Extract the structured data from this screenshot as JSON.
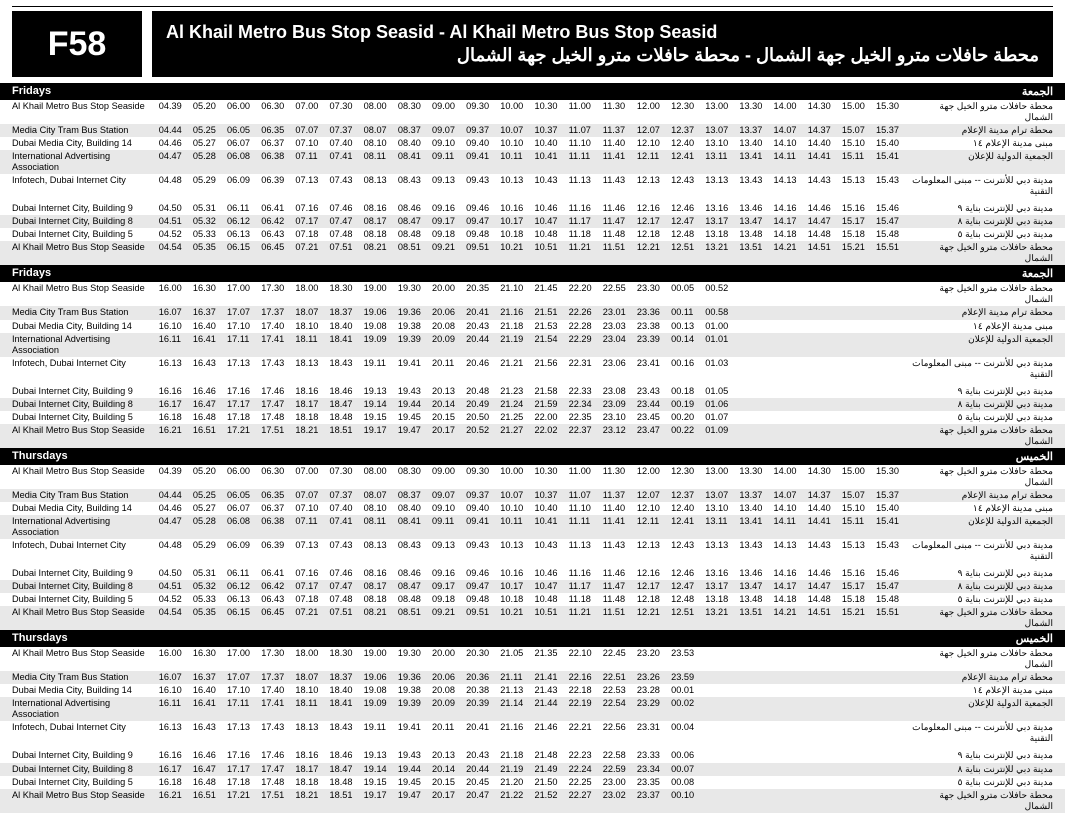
{
  "route_code": "F58",
  "title_en": "Al Khail Metro Bus Stop Seasid - Al Khail Metro Bus Stop Seasid",
  "title_ar": "محطة حافلات مترو الخيل جهة الشمال - محطة حافلات مترو الخيل جهة الشمال",
  "stops_en": [
    "Al Khail Metro Bus Stop Seaside",
    "Media City Tram Bus Station",
    "Dubai Media City, Building 14",
    "International Advertising Association",
    "Infotech, Dubai Internet City",
    "Dubai Internet City, Building 9",
    "Dubai Internet City, Building 8",
    "Dubai Internet City, Building 5",
    "Al Khail Metro Bus Stop Seaside"
  ],
  "stops_ar": [
    "محطة حافلات مترو الخيل جهة الشمال",
    "محطة ترام مدينة الإعلام",
    "مبنى مدينة الإعلام ١٤",
    "الجمعية الدولية للإعلان",
    "مدينة دبي للأنترنت -- مبنى المعلومات التقنية",
    "مدينة دبي للإنترنت بناية ٩",
    "مدينة دبي للإنترنت بناية ٨",
    "مدينة دبي للإنترنت بناية ٥",
    "محطة حافلات مترو الخيل جهة الشمال"
  ],
  "shade_pattern": [
    false,
    true,
    false,
    true,
    false,
    false,
    true,
    false,
    true
  ],
  "gap_before": [
    false,
    false,
    false,
    false,
    false,
    true,
    false,
    false,
    false
  ],
  "sections": [
    {
      "day_en": "Fridays",
      "day_ar": "الجمعة",
      "cols": 20,
      "rows": [
        [
          "04.39",
          "05.20",
          "06.00",
          "06.30",
          "07.00",
          "07.30",
          "08.00",
          "08.30",
          "09.00",
          "09.30",
          "10.00",
          "10.30",
          "11.00",
          "11.30",
          "12.00",
          "12.30",
          "13.00",
          "13.30",
          "14.00",
          "14.30",
          "15.00",
          "15.30"
        ],
        [
          "04.44",
          "05.25",
          "06.05",
          "06.35",
          "07.07",
          "07.37",
          "08.07",
          "08.37",
          "09.07",
          "09.37",
          "10.07",
          "10.37",
          "11.07",
          "11.37",
          "12.07",
          "12.37",
          "13.07",
          "13.37",
          "14.07",
          "14.37",
          "15.07",
          "15.37"
        ],
        [
          "04.46",
          "05.27",
          "06.07",
          "06.37",
          "07.10",
          "07.40",
          "08.10",
          "08.40",
          "09.10",
          "09.40",
          "10.10",
          "10.40",
          "11.10",
          "11.40",
          "12.10",
          "12.40",
          "13.10",
          "13.40",
          "14.10",
          "14.40",
          "15.10",
          "15.40"
        ],
        [
          "04.47",
          "05.28",
          "06.08",
          "06.38",
          "07.11",
          "07.41",
          "08.11",
          "08.41",
          "09.11",
          "09.41",
          "10.11",
          "10.41",
          "11.11",
          "11.41",
          "12.11",
          "12.41",
          "13.11",
          "13.41",
          "14.11",
          "14.41",
          "15.11",
          "15.41"
        ],
        [
          "04.48",
          "05.29",
          "06.09",
          "06.39",
          "07.13",
          "07.43",
          "08.13",
          "08.43",
          "09.13",
          "09.43",
          "10.13",
          "10.43",
          "11.13",
          "11.43",
          "12.13",
          "12.43",
          "13.13",
          "13.43",
          "14.13",
          "14.43",
          "15.13",
          "15.43"
        ],
        [
          "04.50",
          "05.31",
          "06.11",
          "06.41",
          "07.16",
          "07.46",
          "08.16",
          "08.46",
          "09.16",
          "09.46",
          "10.16",
          "10.46",
          "11.16",
          "11.46",
          "12.16",
          "12.46",
          "13.16",
          "13.46",
          "14.16",
          "14.46",
          "15.16",
          "15.46"
        ],
        [
          "04.51",
          "05.32",
          "06.12",
          "06.42",
          "07.17",
          "07.47",
          "08.17",
          "08.47",
          "09.17",
          "09.47",
          "10.17",
          "10.47",
          "11.17",
          "11.47",
          "12.17",
          "12.47",
          "13.17",
          "13.47",
          "14.17",
          "14.47",
          "15.17",
          "15.47"
        ],
        [
          "04.52",
          "05.33",
          "06.13",
          "06.43",
          "07.18",
          "07.48",
          "08.18",
          "08.48",
          "09.18",
          "09.48",
          "10.18",
          "10.48",
          "11.18",
          "11.48",
          "12.18",
          "12.48",
          "13.18",
          "13.48",
          "14.18",
          "14.48",
          "15.18",
          "15.48"
        ],
        [
          "04.54",
          "05.35",
          "06.15",
          "06.45",
          "07.21",
          "07.51",
          "08.21",
          "08.51",
          "09.21",
          "09.51",
          "10.21",
          "10.51",
          "11.21",
          "11.51",
          "12.21",
          "12.51",
          "13.21",
          "13.51",
          "14.21",
          "14.51",
          "15.21",
          "15.51"
        ]
      ]
    },
    {
      "day_en": "Fridays",
      "day_ar": "الجمعة",
      "cols": 15,
      "rows": [
        [
          "16.00",
          "16.30",
          "17.00",
          "17.30",
          "18.00",
          "18.30",
          "19.00",
          "19.30",
          "20.00",
          "20.35",
          "21.10",
          "21.45",
          "22.20",
          "22.55",
          "23.30",
          "00.05",
          "00.52"
        ],
        [
          "16.07",
          "16.37",
          "17.07",
          "17.37",
          "18.07",
          "18.37",
          "19.06",
          "19.36",
          "20.06",
          "20.41",
          "21.16",
          "21.51",
          "22.26",
          "23.01",
          "23.36",
          "00.11",
          "00.58"
        ],
        [
          "16.10",
          "16.40",
          "17.10",
          "17.40",
          "18.10",
          "18.40",
          "19.08",
          "19.38",
          "20.08",
          "20.43",
          "21.18",
          "21.53",
          "22.28",
          "23.03",
          "23.38",
          "00.13",
          "01.00"
        ],
        [
          "16.11",
          "16.41",
          "17.11",
          "17.41",
          "18.11",
          "18.41",
          "19.09",
          "19.39",
          "20.09",
          "20.44",
          "21.19",
          "21.54",
          "22.29",
          "23.04",
          "23.39",
          "00.14",
          "01.01"
        ],
        [
          "16.13",
          "16.43",
          "17.13",
          "17.43",
          "18.13",
          "18.43",
          "19.11",
          "19.41",
          "20.11",
          "20.46",
          "21.21",
          "21.56",
          "22.31",
          "23.06",
          "23.41",
          "00.16",
          "01.03"
        ],
        [
          "16.16",
          "16.46",
          "17.16",
          "17.46",
          "18.16",
          "18.46",
          "19.13",
          "19.43",
          "20.13",
          "20.48",
          "21.23",
          "21.58",
          "22.33",
          "23.08",
          "23.43",
          "00.18",
          "01.05"
        ],
        [
          "16.17",
          "16.47",
          "17.17",
          "17.47",
          "18.17",
          "18.47",
          "19.14",
          "19.44",
          "20.14",
          "20.49",
          "21.24",
          "21.59",
          "22.34",
          "23.09",
          "23.44",
          "00.19",
          "01.06"
        ],
        [
          "16.18",
          "16.48",
          "17.18",
          "17.48",
          "18.18",
          "18.48",
          "19.15",
          "19.45",
          "20.15",
          "20.50",
          "21.25",
          "22.00",
          "22.35",
          "23.10",
          "23.45",
          "00.20",
          "01.07"
        ],
        [
          "16.21",
          "16.51",
          "17.21",
          "17.51",
          "18.21",
          "18.51",
          "19.17",
          "19.47",
          "20.17",
          "20.52",
          "21.27",
          "22.02",
          "22.37",
          "23.12",
          "23.47",
          "00.22",
          "01.09"
        ]
      ]
    },
    {
      "day_en": "Thursdays",
      "day_ar": "الخميس",
      "cols": 20,
      "rows": [
        [
          "04.39",
          "05.20",
          "06.00",
          "06.30",
          "07.00",
          "07.30",
          "08.00",
          "08.30",
          "09.00",
          "09.30",
          "10.00",
          "10.30",
          "11.00",
          "11.30",
          "12.00",
          "12.30",
          "13.00",
          "13.30",
          "14.00",
          "14.30",
          "15.00",
          "15.30"
        ],
        [
          "04.44",
          "05.25",
          "06.05",
          "06.35",
          "07.07",
          "07.37",
          "08.07",
          "08.37",
          "09.07",
          "09.37",
          "10.07",
          "10.37",
          "11.07",
          "11.37",
          "12.07",
          "12.37",
          "13.07",
          "13.37",
          "14.07",
          "14.37",
          "15.07",
          "15.37"
        ],
        [
          "04.46",
          "05.27",
          "06.07",
          "06.37",
          "07.10",
          "07.40",
          "08.10",
          "08.40",
          "09.10",
          "09.40",
          "10.10",
          "10.40",
          "11.10",
          "11.40",
          "12.10",
          "12.40",
          "13.10",
          "13.40",
          "14.10",
          "14.40",
          "15.10",
          "15.40"
        ],
        [
          "04.47",
          "05.28",
          "06.08",
          "06.38",
          "07.11",
          "07.41",
          "08.11",
          "08.41",
          "09.11",
          "09.41",
          "10.11",
          "10.41",
          "11.11",
          "11.41",
          "12.11",
          "12.41",
          "13.11",
          "13.41",
          "14.11",
          "14.41",
          "15.11",
          "15.41"
        ],
        [
          "04.48",
          "05.29",
          "06.09",
          "06.39",
          "07.13",
          "07.43",
          "08.13",
          "08.43",
          "09.13",
          "09.43",
          "10.13",
          "10.43",
          "11.13",
          "11.43",
          "12.13",
          "12.43",
          "13.13",
          "13.43",
          "14.13",
          "14.43",
          "15.13",
          "15.43"
        ],
        [
          "04.50",
          "05.31",
          "06.11",
          "06.41",
          "07.16",
          "07.46",
          "08.16",
          "08.46",
          "09.16",
          "09.46",
          "10.16",
          "10.46",
          "11.16",
          "11.46",
          "12.16",
          "12.46",
          "13.16",
          "13.46",
          "14.16",
          "14.46",
          "15.16",
          "15.46"
        ],
        [
          "04.51",
          "05.32",
          "06.12",
          "06.42",
          "07.17",
          "07.47",
          "08.17",
          "08.47",
          "09.17",
          "09.47",
          "10.17",
          "10.47",
          "11.17",
          "11.47",
          "12.17",
          "12.47",
          "13.17",
          "13.47",
          "14.17",
          "14.47",
          "15.17",
          "15.47"
        ],
        [
          "04.52",
          "05.33",
          "06.13",
          "06.43",
          "07.18",
          "07.48",
          "08.18",
          "08.48",
          "09.18",
          "09.48",
          "10.18",
          "10.48",
          "11.18",
          "11.48",
          "12.18",
          "12.48",
          "13.18",
          "13.48",
          "14.18",
          "14.48",
          "15.18",
          "15.48"
        ],
        [
          "04.54",
          "05.35",
          "06.15",
          "06.45",
          "07.21",
          "07.51",
          "08.21",
          "08.51",
          "09.21",
          "09.51",
          "10.21",
          "10.51",
          "11.21",
          "11.51",
          "12.21",
          "12.51",
          "13.21",
          "13.51",
          "14.21",
          "14.51",
          "15.21",
          "15.51"
        ]
      ]
    },
    {
      "day_en": "Thursdays",
      "day_ar": "الخميس",
      "cols": 14,
      "rows": [
        [
          "16.00",
          "16.30",
          "17.00",
          "17.30",
          "18.00",
          "18.30",
          "19.00",
          "19.30",
          "20.00",
          "20.30",
          "21.05",
          "21.35",
          "22.10",
          "22.45",
          "23.20",
          "23.53"
        ],
        [
          "16.07",
          "16.37",
          "17.07",
          "17.37",
          "18.07",
          "18.37",
          "19.06",
          "19.36",
          "20.06",
          "20.36",
          "21.11",
          "21.41",
          "22.16",
          "22.51",
          "23.26",
          "23.59"
        ],
        [
          "16.10",
          "16.40",
          "17.10",
          "17.40",
          "18.10",
          "18.40",
          "19.08",
          "19.38",
          "20.08",
          "20.38",
          "21.13",
          "21.43",
          "22.18",
          "22.53",
          "23.28",
          "00.01"
        ],
        [
          "16.11",
          "16.41",
          "17.11",
          "17.41",
          "18.11",
          "18.41",
          "19.09",
          "19.39",
          "20.09",
          "20.39",
          "21.14",
          "21.44",
          "22.19",
          "22.54",
          "23.29",
          "00.02"
        ],
        [
          "16.13",
          "16.43",
          "17.13",
          "17.43",
          "18.13",
          "18.43",
          "19.11",
          "19.41",
          "20.11",
          "20.41",
          "21.16",
          "21.46",
          "22.21",
          "22.56",
          "23.31",
          "00.04"
        ],
        [
          "16.16",
          "16.46",
          "17.16",
          "17.46",
          "18.16",
          "18.46",
          "19.13",
          "19.43",
          "20.13",
          "20.43",
          "21.18",
          "21.48",
          "22.23",
          "22.58",
          "23.33",
          "00.06"
        ],
        [
          "16.17",
          "16.47",
          "17.17",
          "17.47",
          "18.17",
          "18.47",
          "19.14",
          "19.44",
          "20.14",
          "20.44",
          "21.19",
          "21.49",
          "22.24",
          "22.59",
          "23.34",
          "00.07"
        ],
        [
          "16.18",
          "16.48",
          "17.18",
          "17.48",
          "18.18",
          "18.48",
          "19.15",
          "19.45",
          "20.15",
          "20.45",
          "21.20",
          "21.50",
          "22.25",
          "23.00",
          "23.35",
          "00.08"
        ],
        [
          "16.21",
          "16.51",
          "17.21",
          "17.51",
          "18.21",
          "18.51",
          "19.17",
          "19.47",
          "20.17",
          "20.47",
          "21.22",
          "21.52",
          "22.27",
          "23.02",
          "23.37",
          "00.10"
        ]
      ]
    }
  ]
}
